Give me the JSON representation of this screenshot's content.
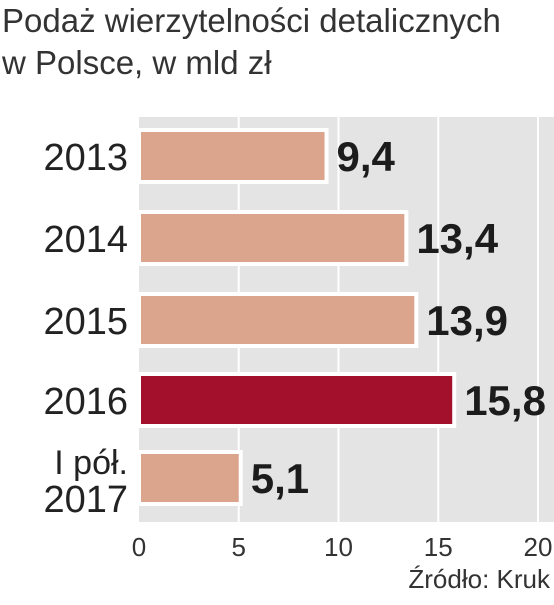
{
  "title_line1": "Podaż wierzytelności detalicznych",
  "title_line2": "w Polsce, w mld zł",
  "source": "Źródło: Kruk",
  "chart_data": {
    "type": "bar",
    "orientation": "horizontal",
    "categories": [
      "2013",
      "2014",
      "2015",
      "2016",
      "I pół. 2017"
    ],
    "values": [
      9.4,
      13.4,
      13.9,
      15.8,
      5.1
    ],
    "value_labels": [
      "9,4",
      "13,4",
      "13,9",
      "15,8",
      "5,1"
    ],
    "xlim": [
      0,
      20
    ],
    "x_ticks": [
      0,
      5,
      10,
      15,
      20
    ],
    "grid": true,
    "colors": {
      "bar": "#dba48d",
      "highlight_bar": "#a3102b",
      "bar_outline": "#ffffff",
      "background_band": "#e4e4e4"
    },
    "highlight_index": 3
  }
}
